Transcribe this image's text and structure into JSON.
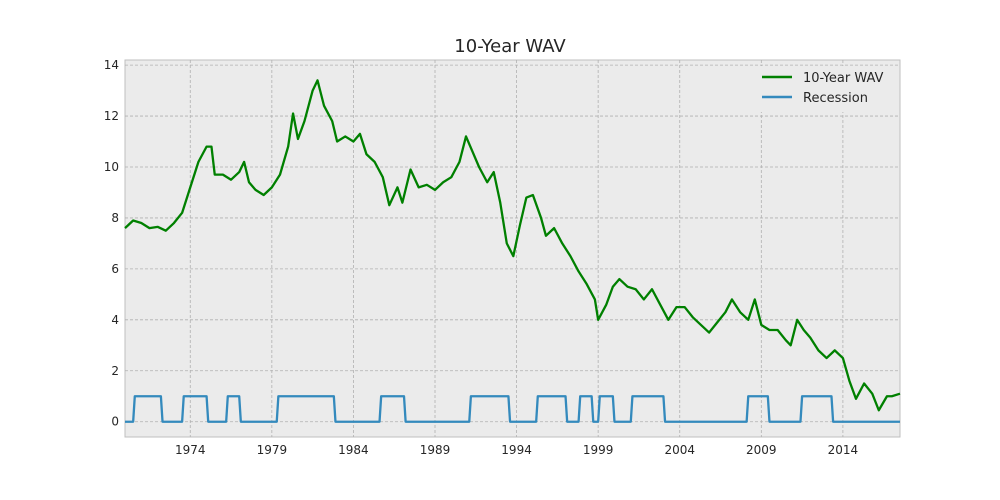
{
  "chart_data": {
    "type": "line",
    "title": "10-Year WAV",
    "xlabel": "",
    "ylabel": "",
    "xlim": [
      1970,
      2017.5
    ],
    "ylim": [
      -0.6,
      14.2
    ],
    "grid": true,
    "legend_position": "top-right",
    "x_ticks": [
      1974,
      1979,
      1984,
      1989,
      1994,
      1999,
      2004,
      2009,
      2014
    ],
    "y_ticks": [
      0,
      2,
      4,
      6,
      8,
      10,
      12,
      14
    ],
    "series": [
      {
        "name": "10-Year WAV",
        "color": "#008000",
        "points": [
          [
            1970.0,
            7.6
          ],
          [
            1970.5,
            7.9
          ],
          [
            1971.0,
            7.8
          ],
          [
            1971.5,
            7.6
          ],
          [
            1972.0,
            7.65
          ],
          [
            1972.5,
            7.5
          ],
          [
            1973.0,
            7.8
          ],
          [
            1973.5,
            8.2
          ],
          [
            1974.0,
            9.2
          ],
          [
            1974.5,
            10.2
          ],
          [
            1975.0,
            10.8
          ],
          [
            1975.3,
            10.8
          ],
          [
            1975.5,
            9.7
          ],
          [
            1976.0,
            9.7
          ],
          [
            1976.5,
            9.5
          ],
          [
            1977.0,
            9.8
          ],
          [
            1977.3,
            10.2
          ],
          [
            1977.6,
            9.4
          ],
          [
            1978.0,
            9.1
          ],
          [
            1978.5,
            8.9
          ],
          [
            1979.0,
            9.2
          ],
          [
            1979.5,
            9.7
          ],
          [
            1980.0,
            10.8
          ],
          [
            1980.3,
            12.1
          ],
          [
            1980.6,
            11.1
          ],
          [
            1981.0,
            11.8
          ],
          [
            1981.5,
            13.0
          ],
          [
            1981.8,
            13.4
          ],
          [
            1982.2,
            12.4
          ],
          [
            1982.7,
            11.8
          ],
          [
            1983.0,
            11.0
          ],
          [
            1983.5,
            11.2
          ],
          [
            1984.0,
            11.0
          ],
          [
            1984.4,
            11.3
          ],
          [
            1984.8,
            10.5
          ],
          [
            1985.3,
            10.2
          ],
          [
            1985.8,
            9.6
          ],
          [
            1986.2,
            8.5
          ],
          [
            1986.7,
            9.2
          ],
          [
            1987.0,
            8.6
          ],
          [
            1987.5,
            9.9
          ],
          [
            1988.0,
            9.2
          ],
          [
            1988.5,
            9.3
          ],
          [
            1989.0,
            9.1
          ],
          [
            1989.5,
            9.4
          ],
          [
            1990.0,
            9.6
          ],
          [
            1990.5,
            10.2
          ],
          [
            1990.9,
            11.2
          ],
          [
            1991.3,
            10.6
          ],
          [
            1991.7,
            10.0
          ],
          [
            1992.2,
            9.4
          ],
          [
            1992.6,
            9.8
          ],
          [
            1993.0,
            8.6
          ],
          [
            1993.4,
            7.0
          ],
          [
            1993.8,
            6.5
          ],
          [
            1994.2,
            7.7
          ],
          [
            1994.6,
            8.8
          ],
          [
            1995.0,
            8.9
          ],
          [
            1995.5,
            8.0
          ],
          [
            1995.8,
            7.3
          ],
          [
            1996.3,
            7.6
          ],
          [
            1996.8,
            7.0
          ],
          [
            1997.3,
            6.5
          ],
          [
            1997.8,
            5.9
          ],
          [
            1998.3,
            5.4
          ],
          [
            1998.8,
            4.8
          ],
          [
            1999.0,
            4.0
          ],
          [
            1999.5,
            4.6
          ],
          [
            1999.9,
            5.3
          ],
          [
            2000.3,
            5.6
          ],
          [
            2000.8,
            5.3
          ],
          [
            2001.3,
            5.2
          ],
          [
            2001.8,
            4.8
          ],
          [
            2002.3,
            5.2
          ],
          [
            2002.8,
            4.6
          ],
          [
            2003.3,
            4.0
          ],
          [
            2003.8,
            4.5
          ],
          [
            2004.3,
            4.5
          ],
          [
            2004.8,
            4.1
          ],
          [
            2005.3,
            3.8
          ],
          [
            2005.8,
            3.5
          ],
          [
            2006.3,
            3.9
          ],
          [
            2006.8,
            4.3
          ],
          [
            2007.2,
            4.8
          ],
          [
            2007.7,
            4.3
          ],
          [
            2008.2,
            4.0
          ],
          [
            2008.6,
            4.8
          ],
          [
            2009.0,
            3.8
          ],
          [
            2009.5,
            3.6
          ],
          [
            2010.0,
            3.6
          ],
          [
            2010.5,
            3.2
          ],
          [
            2010.8,
            3.0
          ],
          [
            2011.2,
            4.0
          ],
          [
            2011.6,
            3.6
          ],
          [
            2012.0,
            3.3
          ],
          [
            2012.5,
            2.8
          ],
          [
            2013.0,
            2.5
          ],
          [
            2013.5,
            2.8
          ],
          [
            2014.0,
            2.5
          ],
          [
            2014.4,
            1.6
          ],
          [
            2014.8,
            0.9
          ],
          [
            2015.3,
            1.5
          ],
          [
            2015.8,
            1.1
          ],
          [
            2016.2,
            0.45
          ],
          [
            2016.7,
            1.0
          ],
          [
            2017.0,
            1.0
          ],
          [
            2017.5,
            1.1
          ]
        ]
      },
      {
        "name": "Recession",
        "color": "#348ABD",
        "points": [
          [
            1970.0,
            0
          ],
          [
            1970.5,
            0
          ],
          [
            1970.6,
            1
          ],
          [
            1972.2,
            1
          ],
          [
            1972.3,
            0
          ],
          [
            1973.5,
            0
          ],
          [
            1973.6,
            1
          ],
          [
            1975.0,
            1
          ],
          [
            1975.1,
            0
          ],
          [
            1976.2,
            0
          ],
          [
            1976.3,
            1
          ],
          [
            1977.0,
            1
          ],
          [
            1977.1,
            0
          ],
          [
            1979.3,
            0
          ],
          [
            1979.4,
            1
          ],
          [
            1982.8,
            1
          ],
          [
            1982.9,
            0
          ],
          [
            1985.6,
            0
          ],
          [
            1985.7,
            1
          ],
          [
            1987.1,
            1
          ],
          [
            1987.2,
            0
          ],
          [
            1991.1,
            0
          ],
          [
            1991.2,
            1
          ],
          [
            1993.5,
            1
          ],
          [
            1993.6,
            0
          ],
          [
            1995.2,
            0
          ],
          [
            1995.3,
            1
          ],
          [
            1997.0,
            1
          ],
          [
            1997.1,
            0
          ],
          [
            1997.8,
            0
          ],
          [
            1997.9,
            1
          ],
          [
            1998.6,
            1
          ],
          [
            1998.7,
            0
          ],
          [
            1999.0,
            0
          ],
          [
            1999.1,
            1
          ],
          [
            1999.9,
            1
          ],
          [
            2000.0,
            0
          ],
          [
            2001.0,
            0
          ],
          [
            2001.1,
            1
          ],
          [
            2003.0,
            1
          ],
          [
            2003.1,
            0
          ],
          [
            2008.1,
            0
          ],
          [
            2008.2,
            1
          ],
          [
            2009.4,
            1
          ],
          [
            2009.5,
            0
          ],
          [
            2011.4,
            0
          ],
          [
            2011.5,
            1
          ],
          [
            2013.3,
            1
          ],
          [
            2013.4,
            0
          ],
          [
            2017.5,
            0
          ]
        ]
      }
    ]
  }
}
